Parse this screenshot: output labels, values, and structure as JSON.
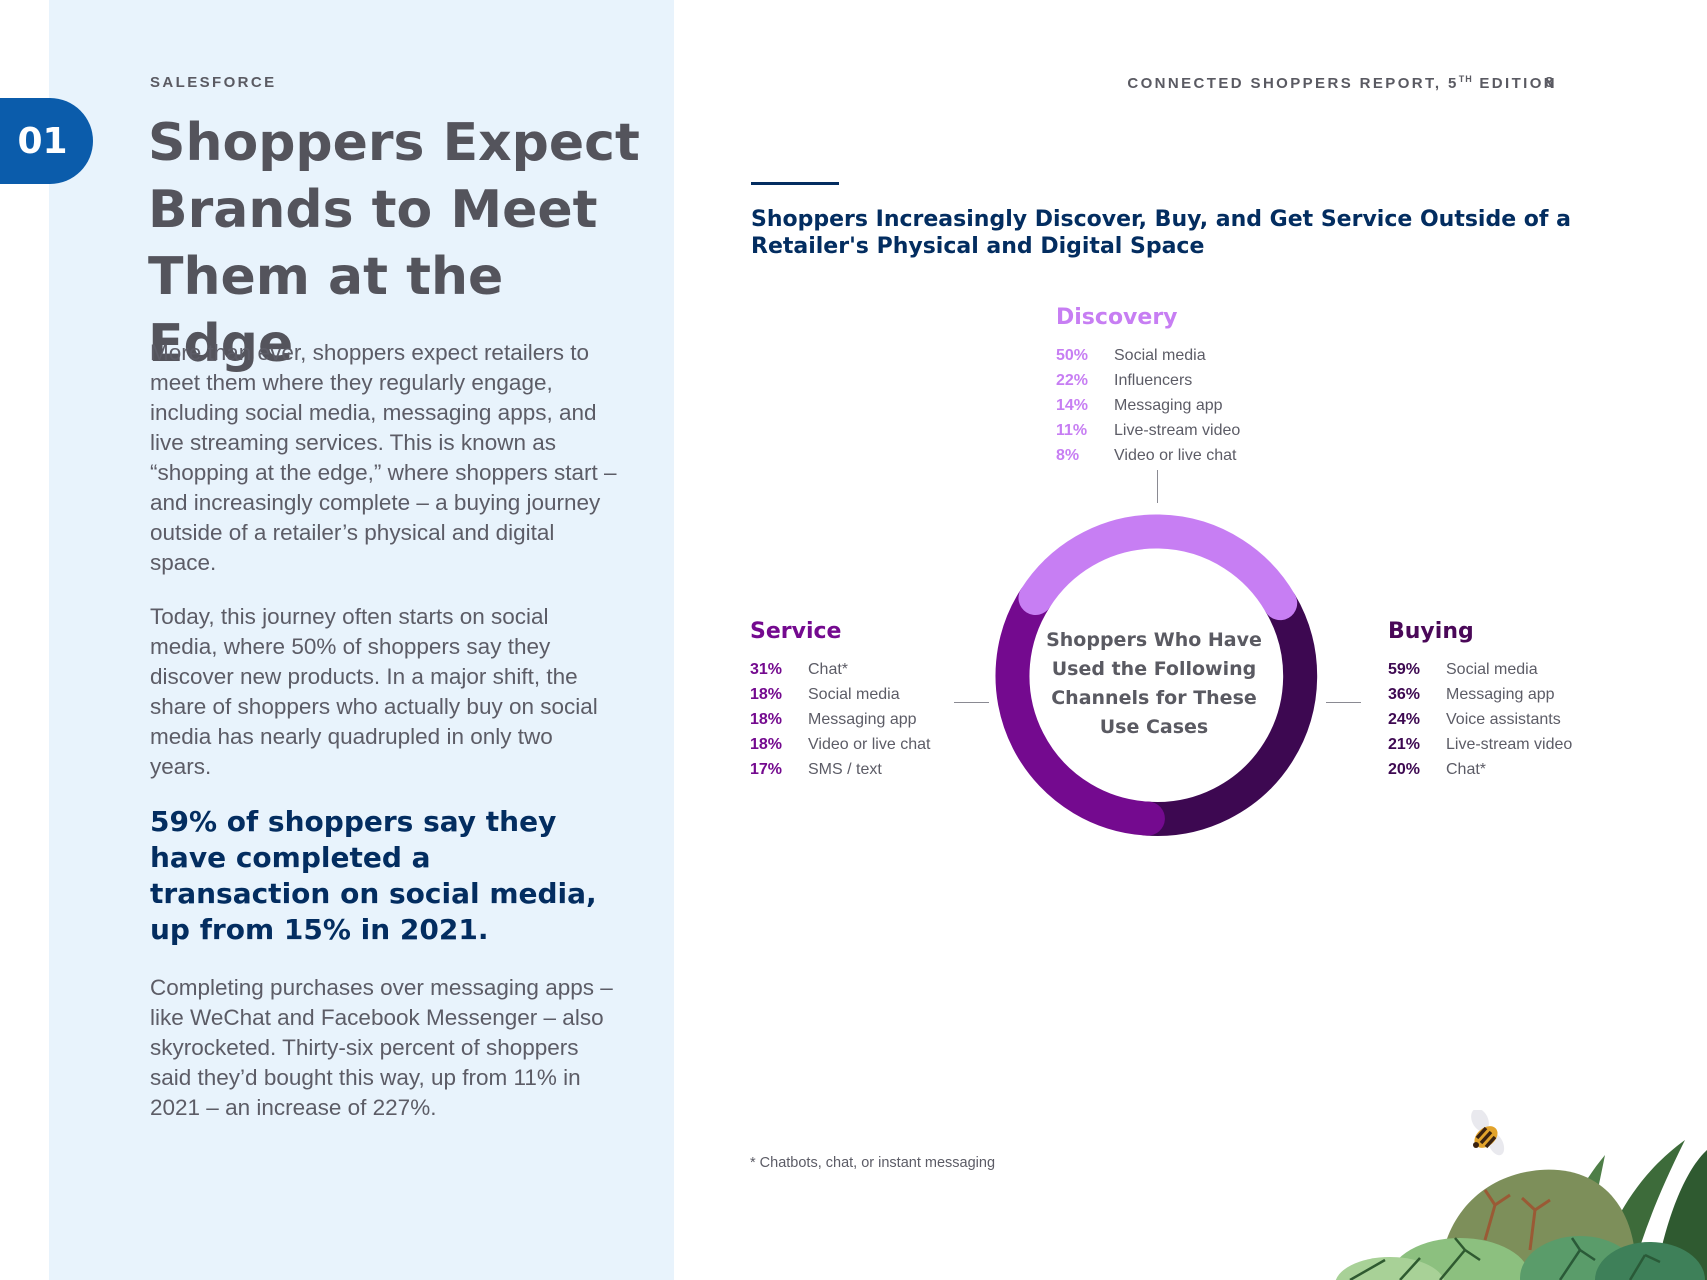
{
  "header": {
    "brand": "SALESFORCE",
    "report_title": "CONNECTED SHOPPERS REPORT, 5",
    "report_sup": "TH",
    "report_edition": " EDITION",
    "page_number": "8"
  },
  "chapter": {
    "number": "01"
  },
  "left": {
    "title": "Shoppers Expect Brands to Meet Them at the Edge",
    "para1": "More than ever, shoppers expect retailers to meet them where they regularly engage, including social media, messaging apps, and live streaming services. This is known as “shopping at the edge,” where shoppers start – and increasingly complete – a buying journey outside of a retailer’s physical and digital space.",
    "para2": "Today, this journey often starts on social media, where 50% of shoppers say they discover new products. In a major shift, the share of shoppers who actually buy on social media has nearly quadrupled in only two years.",
    "callout": "59% of shoppers say they have completed a transaction on social media, up from 15% in 2021.",
    "para3": "Completing purchases over messaging apps – like WeChat and Facebook Messenger – also skyrocketed. Thirty-six percent of shoppers said they’d bought this way, up from 11% in 2021 – an increase of 227%."
  },
  "figure": {
    "title": "Shoppers Increasingly Discover, Buy, and Get Service Outside of a Retailer's Physical and Digital Space",
    "center_label": "Shoppers Who Have Used the Following Channels for These Use Cases",
    "footnote": "* Chatbots, chat, or instant messaging",
    "colors": {
      "discovery": "#c77ef3",
      "service": "#740a8f",
      "buying": "#3d0851"
    },
    "discovery": {
      "title": "Discovery",
      "items": [
        {
          "pct": "50%",
          "label": "Social media"
        },
        {
          "pct": "22%",
          "label": "Influencers"
        },
        {
          "pct": "14%",
          "label": "Messaging app"
        },
        {
          "pct": "11%",
          "label": "Live-stream video"
        },
        {
          "pct": "8%",
          "label": "Video or live chat"
        }
      ]
    },
    "service": {
      "title": "Service",
      "items": [
        {
          "pct": "31%",
          "label": "Chat*"
        },
        {
          "pct": "18%",
          "label": "Social media"
        },
        {
          "pct": "18%",
          "label": "Messaging app"
        },
        {
          "pct": "18%",
          "label": "Video or live chat"
        },
        {
          "pct": "17%",
          "label": "SMS / text"
        }
      ]
    },
    "buying": {
      "title": "Buying",
      "items": [
        {
          "pct": "59%",
          "label": "Social media"
        },
        {
          "pct": "36%",
          "label": "Messaging app"
        },
        {
          "pct": "24%",
          "label": "Voice assistants"
        },
        {
          "pct": "21%",
          "label": "Live-stream video"
        },
        {
          "pct": "20%",
          "label": "Chat*"
        }
      ]
    }
  },
  "decor": {
    "illustration": "foliage-illustration",
    "mascot": "bee-icon"
  }
}
